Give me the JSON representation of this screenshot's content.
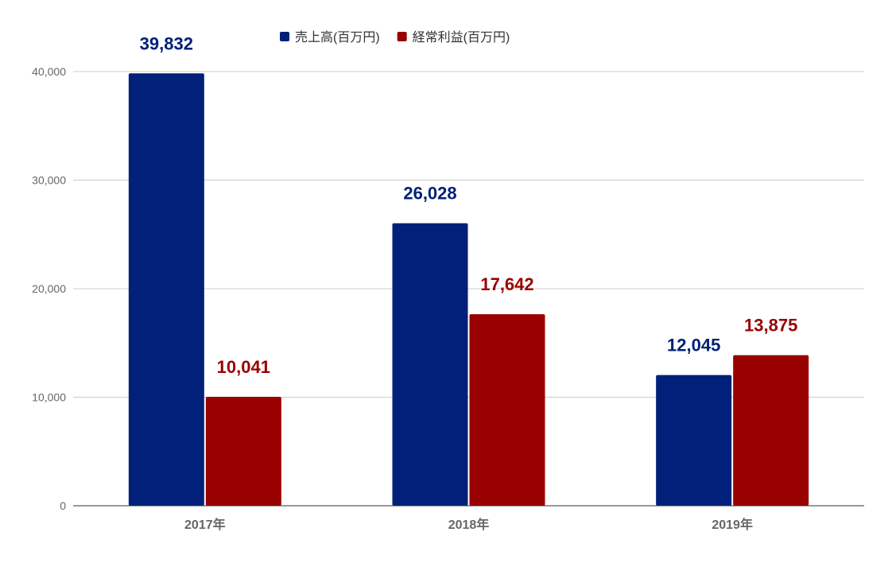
{
  "chart_data": {
    "type": "bar",
    "categories": [
      "2017年",
      "2018年",
      "2019年"
    ],
    "series": [
      {
        "name": "売上高(百万円)",
        "values": [
          39832,
          26028,
          12045
        ],
        "color": "#002079"
      },
      {
        "name": "経常利益(百万円)",
        "values": [
          10041,
          17642,
          13875
        ],
        "color": "#990000"
      }
    ],
    "ylim": [
      0,
      40000
    ],
    "yticks": [
      0,
      10000,
      20000,
      30000,
      40000
    ],
    "data_labels": [
      [
        "39,832",
        "26,028",
        "12,045"
      ],
      [
        "10,041",
        "17,642",
        "13,875"
      ]
    ],
    "ytick_labels": [
      "0",
      "10,000",
      "20,000",
      "30,000",
      "40,000"
    ],
    "title": "",
    "xlabel": "",
    "ylabel": "",
    "grid": true,
    "legend_position": "top"
  }
}
